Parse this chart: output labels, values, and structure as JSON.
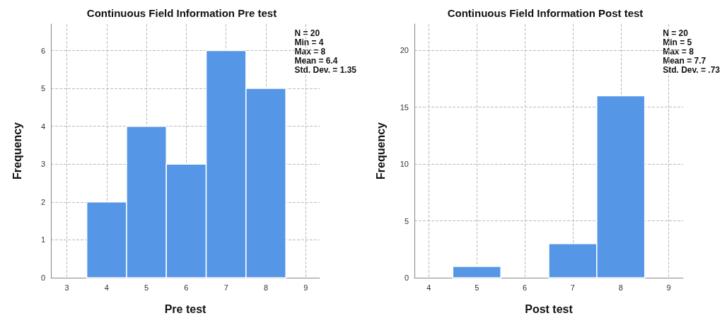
{
  "chart_data": [
    {
      "type": "histogram",
      "title": "Continuous Field Information Pre test",
      "xlabel": "Pre test",
      "ylabel": "Frequency",
      "bins": [
        3.5,
        4.5,
        5.5,
        6.5,
        7.5,
        8.5
      ],
      "values": [
        2,
        4,
        3,
        6,
        5
      ],
      "color": "#5596e6",
      "xlim": [
        2.6,
        9.35
      ],
      "xticks": [
        3,
        4,
        5,
        6,
        7,
        8,
        9
      ],
      "ylim": [
        0,
        6.7
      ],
      "yticks": [
        0,
        1,
        2,
        3,
        4,
        5,
        6
      ],
      "grid": true,
      "annotations": [
        "N = 20",
        "Min = 4",
        "Max = 8",
        "Mean = 6.4",
        "Std. Dev. = 1.35"
      ]
    },
    {
      "type": "histogram",
      "title": "Continuous Field Information Post test",
      "xlabel": "Post test",
      "ylabel": "Frequency",
      "bins": [
        4.5,
        5.5,
        6.5,
        7.5,
        8.5
      ],
      "values": [
        1,
        0,
        3,
        16
      ],
      "color": "#5596e6",
      "xlim": [
        3.7,
        9.3
      ],
      "xticks": [
        4,
        5,
        6,
        7,
        8,
        9
      ],
      "ylim": [
        0,
        22.3
      ],
      "yticks": [
        0,
        5,
        10,
        15,
        20
      ],
      "grid": true,
      "annotations": [
        "N = 20",
        "Min = 5",
        "Max = 8",
        "Mean = 7.7",
        "Std. Dev. = .73"
      ]
    }
  ]
}
